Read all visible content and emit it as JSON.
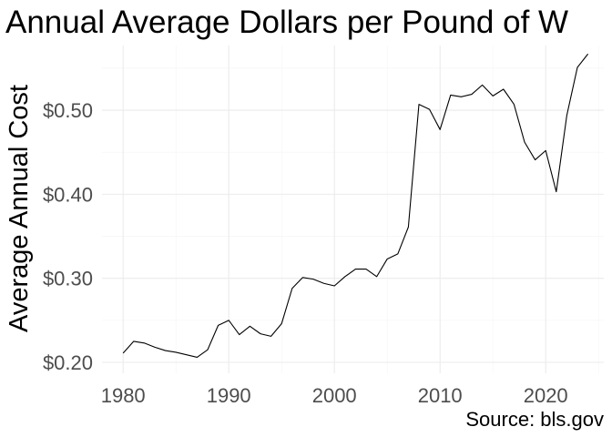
{
  "chart_data": {
    "type": "line",
    "title": "Annual Average Dollars per Pound of W",
    "xlabel": "",
    "ylabel": "Average Annual Cost",
    "caption": "Source: bls.gov",
    "xlim": [
      1978,
      2025.5
    ],
    "ylim": [
      0.187,
      0.577
    ],
    "x_ticks": [
      1980,
      1990,
      2000,
      2010,
      2020
    ],
    "x_tick_labels": [
      "1980",
      "1990",
      "2000",
      "2010",
      "2020"
    ],
    "y_ticks": [
      0.2,
      0.3,
      0.4,
      0.5
    ],
    "y_tick_labels": [
      "$0.20",
      "$0.30",
      "$0.40",
      "$0.50"
    ],
    "grid": true,
    "legend": "none",
    "series": [
      {
        "color": "#000000",
        "x": [
          1980,
          1981,
          1982,
          1983,
          1984,
          1985,
          1986,
          1987,
          1988,
          1989,
          1990,
          1991,
          1992,
          1993,
          1994,
          1995,
          1996,
          1997,
          1998,
          1999,
          2000,
          2001,
          2002,
          2003,
          2004,
          2005,
          2006,
          2007,
          2008,
          2009,
          2010,
          2011,
          2012,
          2013,
          2014,
          2015,
          2016,
          2017,
          2018,
          2019,
          2020,
          2021,
          2022,
          2023,
          2024
        ],
        "values": [
          0.211,
          0.225,
          0.223,
          0.218,
          0.214,
          0.212,
          0.209,
          0.206,
          0.215,
          0.244,
          0.25,
          0.233,
          0.243,
          0.234,
          0.231,
          0.246,
          0.288,
          0.301,
          0.299,
          0.294,
          0.291,
          0.302,
          0.311,
          0.311,
          0.302,
          0.323,
          0.329,
          0.361,
          0.507,
          0.501,
          0.477,
          0.518,
          0.516,
          0.519,
          0.53,
          0.517,
          0.525,
          0.507,
          0.462,
          0.441,
          0.452,
          0.403,
          0.494,
          0.551,
          0.567
        ]
      }
    ]
  }
}
